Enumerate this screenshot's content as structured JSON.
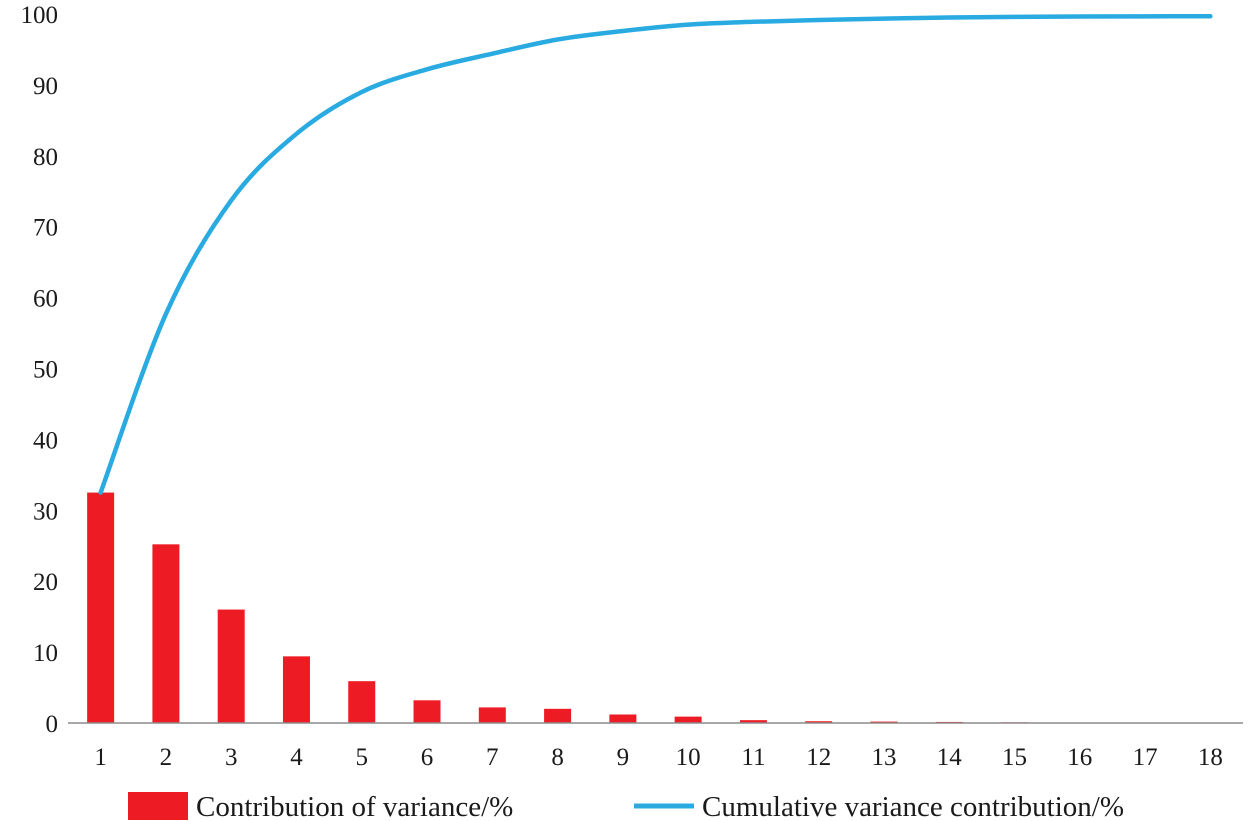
{
  "chart_data": {
    "type": "bar",
    "title": "",
    "xlabel": "",
    "ylabel": "",
    "categories": [
      "1",
      "2",
      "3",
      "4",
      "5",
      "6",
      "7",
      "8",
      "9",
      "10",
      "11",
      "12",
      "13",
      "14",
      "15",
      "16",
      "17",
      "18"
    ],
    "ylim": [
      0,
      100
    ],
    "yticks": [
      "0",
      "10",
      "20",
      "30",
      "40",
      "50",
      "60",
      "70",
      "80",
      "90",
      "100"
    ],
    "grid": false,
    "legend_position": "bottom",
    "series": [
      {
        "name": "Contribution of variance/%",
        "type": "bar",
        "color": "#ed1c24",
        "values": [
          32.5,
          25.2,
          16.0,
          9.4,
          5.9,
          3.2,
          2.2,
          2.0,
          1.2,
          0.9,
          0.4,
          0.25,
          0.2,
          0.15,
          0.1,
          0.05,
          0.02,
          0.01
        ]
      },
      {
        "name": "Cumulative variance contribution/%",
        "type": "line",
        "color": "#29abe2",
        "values": [
          32.5,
          57.7,
          73.7,
          83.1,
          89.0,
          92.2,
          94.4,
          96.4,
          97.6,
          98.5,
          98.9,
          99.15,
          99.35,
          99.5,
          99.6,
          99.65,
          99.67,
          99.68
        ]
      }
    ]
  }
}
